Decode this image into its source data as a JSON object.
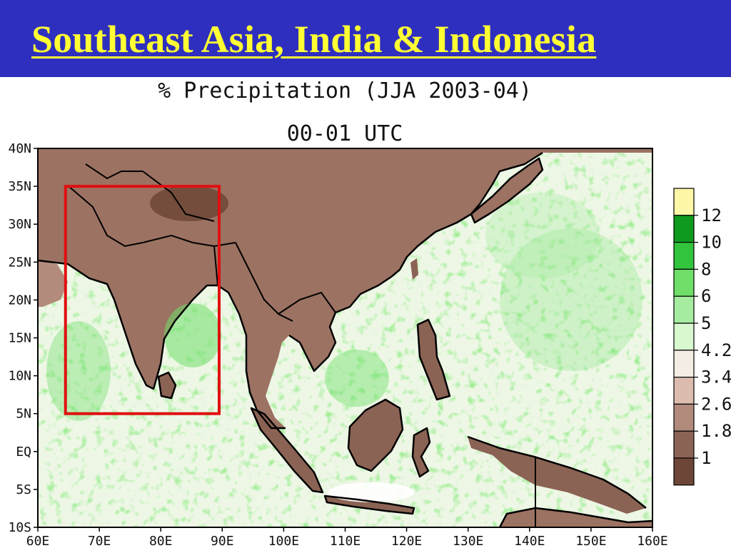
{
  "slide": {
    "title": "Southeast Asia, India & Indonesia",
    "title_color": "#ffff33",
    "background_color": "#2f2fbf"
  },
  "map": {
    "title": "% Precipitation (JJA 2003-04)",
    "subtitle": "00-01 UTC",
    "lat_labels": [
      "40N",
      "35N",
      "30N",
      "25N",
      "20N",
      "15N",
      "10N",
      "5N",
      "EQ",
      "5S",
      "10S"
    ],
    "lon_labels": [
      "60E",
      "70E",
      "80E",
      "90E",
      "100E",
      "110E",
      "120E",
      "130E",
      "140E",
      "150E",
      "160E"
    ],
    "lon_range": [
      60,
      160
    ],
    "lat_range": [
      -10,
      40
    ],
    "highlight_box": {
      "lon": [
        64.5,
        89.5
      ],
      "lat": [
        5,
        35
      ],
      "color": "#e01010"
    },
    "legend": {
      "labels": [
        "12",
        "10",
        "8",
        "6",
        "5",
        "4.2",
        "3.4",
        "2.6",
        "1.8",
        "1"
      ],
      "colors": [
        "#fff7a8",
        "#0e9a1e",
        "#32c43c",
        "#6fdf6a",
        "#a6eca0",
        "#d8f8d0",
        "#f4ede4",
        "#dcbcae",
        "#b18a7c",
        "#8b6354",
        "#6e4637"
      ]
    }
  }
}
